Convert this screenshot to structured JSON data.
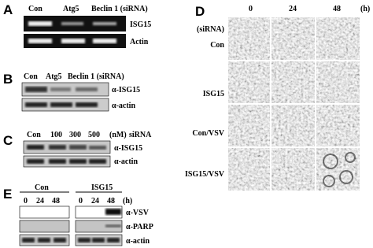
{
  "panels": [
    {
      "label": "A",
      "lanes": [
        "Con",
        "Atg5",
        "Beclin 1 (siRNA)"
      ],
      "bands": [
        "ISG15",
        "Actin"
      ]
    },
    {
      "label": "B",
      "lanes": [
        "Con",
        "Atg5",
        "Beclin 1 (siRNA)"
      ],
      "bands": [
        "α-ISG15",
        "α-actin"
      ]
    },
    {
      "label": "C",
      "lanes": [
        "Con",
        100,
        300,
        500,
        "(nM)",
        "siRNA"
      ],
      "bands": [
        "α-ISG15",
        "α-actin"
      ]
    },
    {
      "label": "D",
      "row_header": "(siRNA)",
      "times": [
        0,
        24,
        48
      ],
      "time_unit": "(h)",
      "rows": [
        "Con",
        "ISG15",
        "Con/VSV",
        "ISG15/VSV"
      ]
    },
    {
      "label": "E",
      "groups": [
        {
          "name": "Con",
          "times": [
            0,
            24,
            48
          ]
        },
        {
          "name": "ISG15",
          "times": [
            0,
            24,
            48
          ]
        }
      ],
      "time_unit": "(h)",
      "bands": [
        "α-VSV",
        "α-PARP",
        "α-actin"
      ]
    }
  ]
}
